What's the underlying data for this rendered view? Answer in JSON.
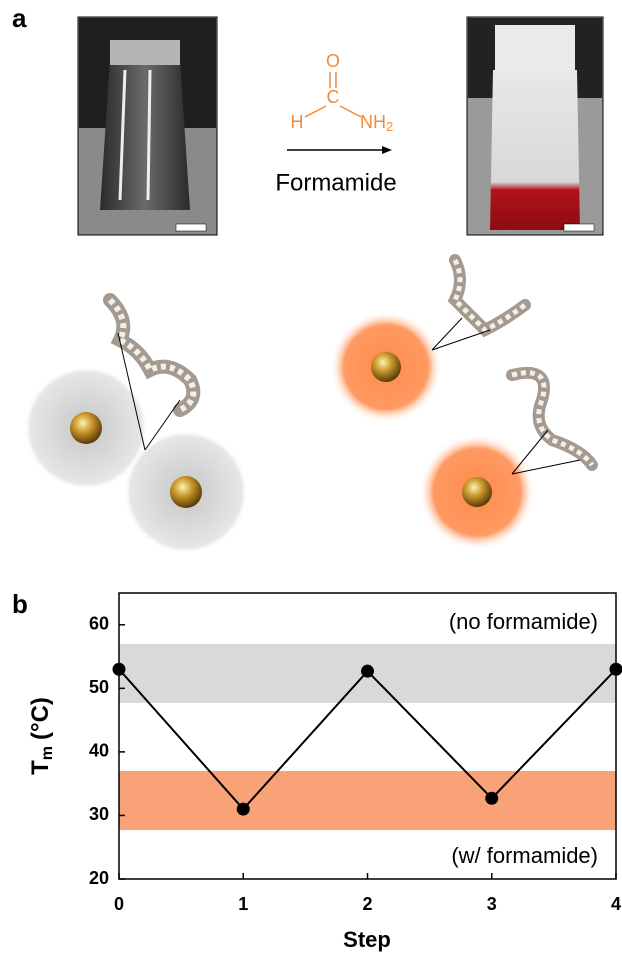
{
  "panel_a": {
    "label": "a",
    "molecule": {
      "O": "O",
      "C": "C",
      "H": "H",
      "NH": "NH",
      "sub": "2"
    },
    "reagent": "Formamide"
  },
  "chart_data": {
    "type": "line",
    "panel_label": "b",
    "x": [
      0,
      1,
      2,
      3,
      4
    ],
    "values": [
      53,
      31,
      52.7,
      32.7,
      53
    ],
    "color": "#000000",
    "xlim": [
      0,
      4
    ],
    "xticks": [
      0,
      1,
      2,
      3,
      4
    ],
    "ylim": [
      20,
      65
    ],
    "yticks": [
      20,
      30,
      40,
      50,
      60
    ],
    "x_label": "Step",
    "y_label": {
      "main": "T",
      "sub": "m",
      "unit": "(°C)"
    },
    "bands": [
      {
        "range": [
          47.7,
          57
        ],
        "color": "#d9d9d9"
      },
      {
        "range": [
          27.7,
          37
        ],
        "color": "#f9a277"
      }
    ],
    "annotations": [
      "(no formamide)",
      "(w/ formamide)"
    ]
  }
}
